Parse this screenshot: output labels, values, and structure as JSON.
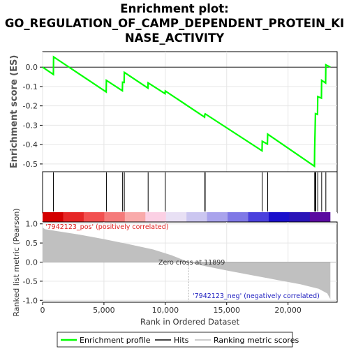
{
  "title_lines": [
    "Enrichment plot:",
    "GO_REGULATION_OF_CAMP_DEPENDENT_PROTEIN_KI",
    "NASE_ACTIVITY"
  ],
  "chart_data": [
    {
      "panel": "enrichment-score",
      "type": "line",
      "ylabel": "Enrichment score (ES)",
      "xlim": [
        0,
        24000
      ],
      "ylim": [
        -0.54,
        0.08
      ],
      "yticks": [
        0.0,
        -0.1,
        -0.2,
        -0.3,
        -0.4,
        -0.5
      ],
      "ytick_labels": [
        "0.0",
        "-0.1",
        "-0.2",
        "-0.3",
        "-0.4",
        "-0.5"
      ],
      "grid": true,
      "series": [
        {
          "name": "Enrichment profile",
          "color": "#00ff00",
          "points": [
            [
              0,
              0.0
            ],
            [
              880,
              -0.038
            ],
            [
              900,
              0.053
            ],
            [
              5180,
              -0.128
            ],
            [
              5200,
              -0.068
            ],
            [
              6500,
              -0.122
            ],
            [
              6520,
              -0.078
            ],
            [
              6640,
              -0.079
            ],
            [
              6660,
              -0.027
            ],
            [
              8580,
              -0.108
            ],
            [
              8600,
              -0.081
            ],
            [
              9980,
              -0.137
            ],
            [
              10000,
              -0.123
            ],
            [
              13200,
              -0.258
            ],
            [
              13220,
              -0.244
            ],
            [
              13250,
              -0.241
            ],
            [
              17880,
              -0.432
            ],
            [
              17900,
              -0.383
            ],
            [
              18320,
              -0.397
            ],
            [
              18340,
              -0.346
            ],
            [
              22150,
              -0.512
            ],
            [
              22170,
              -0.425
            ],
            [
              22200,
              -0.33
            ],
            [
              22230,
              -0.24
            ],
            [
              22400,
              -0.244
            ],
            [
              22420,
              -0.152
            ],
            [
              22720,
              -0.16
            ],
            [
              22740,
              -0.068
            ],
            [
              23060,
              -0.082
            ],
            [
              23080,
              0.012
            ],
            [
              23450,
              0.0
            ]
          ]
        }
      ]
    },
    {
      "panel": "hits",
      "type": "scatter",
      "series": [
        {
          "name": "Hits",
          "color": "#000000",
          "x": [
            880,
            5200,
            6520,
            6660,
            8600,
            10000,
            13220,
            13250,
            17900,
            18340,
            22170,
            22200,
            22230,
            22260,
            22420,
            22740,
            23080
          ]
        }
      ]
    },
    {
      "panel": "ranking-metric",
      "type": "area",
      "ylabel": "Ranked list metric (Pearson)",
      "xlabel": "Rank in Ordered Dataset",
      "xlim": [
        0,
        24000
      ],
      "ylim": [
        -1.05,
        1.05
      ],
      "yticks": [
        1.0,
        0.5,
        0.0,
        -0.5,
        -1.0
      ],
      "ytick_labels": [
        "1.0",
        "0.5",
        "0.0",
        "-0.5",
        "-1.0"
      ],
      "xticks": [
        0,
        5000,
        10000,
        15000,
        20000
      ],
      "xtick_labels": [
        "0",
        "5,000",
        "10,000",
        "15,000",
        "20,000"
      ],
      "grid": true,
      "zero_cross": 11899,
      "zero_cross_label": "Zero cross at 11899",
      "pos_label": "'7942123_pos' (positively correlated)",
      "neg_label": "'7942123_neg' (negatively correlated)",
      "series": [
        {
          "name": "Ranking metric scores",
          "color": "#c0c0c0",
          "points": [
            [
              0,
              1.0
            ],
            [
              20,
              0.9
            ],
            [
              200,
              0.86
            ],
            [
              1000,
              0.82
            ],
            [
              3000,
              0.72
            ],
            [
              5000,
              0.6
            ],
            [
              7000,
              0.47
            ],
            [
              9000,
              0.33
            ],
            [
              10500,
              0.18
            ],
            [
              11899,
              0.0
            ],
            [
              13000,
              -0.09
            ],
            [
              15000,
              -0.22
            ],
            [
              17000,
              -0.34
            ],
            [
              19000,
              -0.46
            ],
            [
              21000,
              -0.58
            ],
            [
              22500,
              -0.7
            ],
            [
              23200,
              -0.82
            ],
            [
              23450,
              -0.97
            ]
          ]
        }
      ],
      "heatmap_colors": [
        "#d40000",
        "#e62626",
        "#f25050",
        "#f57a7a",
        "#f9aaaa",
        "#fbd0e4",
        "#e8e0f4",
        "#cbc6f0",
        "#a9a3ec",
        "#7f78e6",
        "#4a40dd",
        "#1a0fcc",
        "#2a14b8",
        "#5a0aa0"
      ]
    }
  ],
  "legend": [
    {
      "label": "Enrichment profile",
      "color": "#00ff00"
    },
    {
      "label": "Hits",
      "color": "#444444"
    },
    {
      "label": "Ranking metric scores",
      "color": "#cccccc"
    }
  ]
}
